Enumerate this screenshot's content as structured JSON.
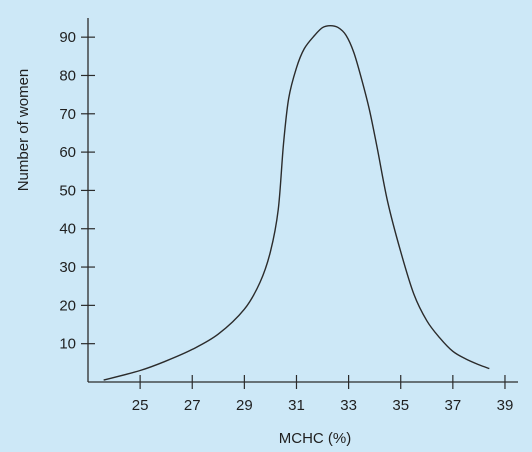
{
  "chart_data": {
    "type": "line",
    "title": "",
    "xlabel": "MCHC (%)",
    "ylabel": "Number of women",
    "xlim": [
      23,
      39.5
    ],
    "ylim": [
      0,
      95
    ],
    "x_ticks": [
      25,
      27,
      29,
      31,
      33,
      35,
      37,
      39
    ],
    "y_ticks": [
      10,
      20,
      30,
      40,
      50,
      60,
      70,
      80,
      90
    ],
    "x_tick_labels": [
      "25",
      "27",
      "29",
      "31",
      "33",
      "35",
      "37",
      "39"
    ],
    "y_tick_labels": [
      "10",
      "20",
      "30",
      "40",
      "50",
      "60",
      "70",
      "80",
      "90"
    ],
    "grid": false,
    "legend": "none",
    "colors": {
      "background": "#cde8f7",
      "line": "#2b2b2b",
      "axis": "#2b2b2b",
      "text": "#1f1f1f"
    },
    "series": [
      {
        "x": [
          23.6,
          25,
          26,
          27,
          28,
          29,
          29.6,
          30,
          30.3,
          30.5,
          30.7,
          31,
          31.3,
          31.7,
          32,
          32.3,
          32.6,
          32.9,
          33.2,
          33.5,
          33.8,
          34.1,
          34.5,
          35,
          35.5,
          36,
          36.5,
          37,
          37.5,
          38,
          38.4
        ],
        "y": [
          0.5,
          3,
          5.5,
          8.5,
          12.5,
          19,
          26,
          34,
          45,
          62,
          74,
          82,
          87,
          90.5,
          92.5,
          93,
          92.5,
          90.5,
          86,
          79,
          71,
          61,
          47,
          34,
          23,
          16,
          11.5,
          8,
          6,
          4.5,
          3.5
        ]
      }
    ]
  }
}
